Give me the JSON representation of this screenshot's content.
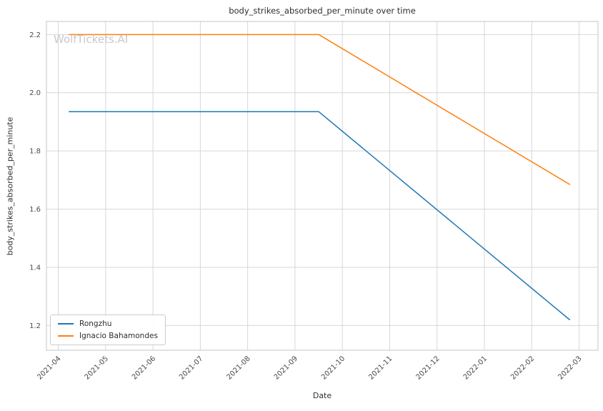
{
  "chart_data": {
    "type": "line",
    "title": "body_strikes_absorbed_per_minute over time",
    "xlabel": "Date",
    "ylabel": "body_strikes_absorbed_per_minute",
    "watermark": "WolfTickets.AI",
    "grid": true,
    "legend_position": "lower left",
    "x_tick_labels": [
      "2021-04",
      "2021-05",
      "2021-06",
      "2021-07",
      "2021-08",
      "2021-09",
      "2021-10",
      "2021-11",
      "2021-12",
      "2022-01",
      "2022-02",
      "2022-03"
    ],
    "y_ticks": [
      1.2,
      1.4,
      1.6,
      1.8,
      2.0,
      2.2
    ],
    "x_unit": "months since 2021-04",
    "xlim": [
      -0.25,
      11.4
    ],
    "ylim": [
      1.115,
      2.245
    ],
    "series": [
      {
        "name": "Rongzhu",
        "color": "#1f77b4",
        "x": [
          0.23,
          5.5,
          10.8
        ],
        "y": [
          1.935,
          1.935,
          1.22
        ]
      },
      {
        "name": "Ignacio Bahamondes",
        "color": "#ff7f0e",
        "x": [
          0.23,
          5.5,
          10.8
        ],
        "y": [
          2.2,
          2.2,
          1.685
        ]
      }
    ]
  }
}
